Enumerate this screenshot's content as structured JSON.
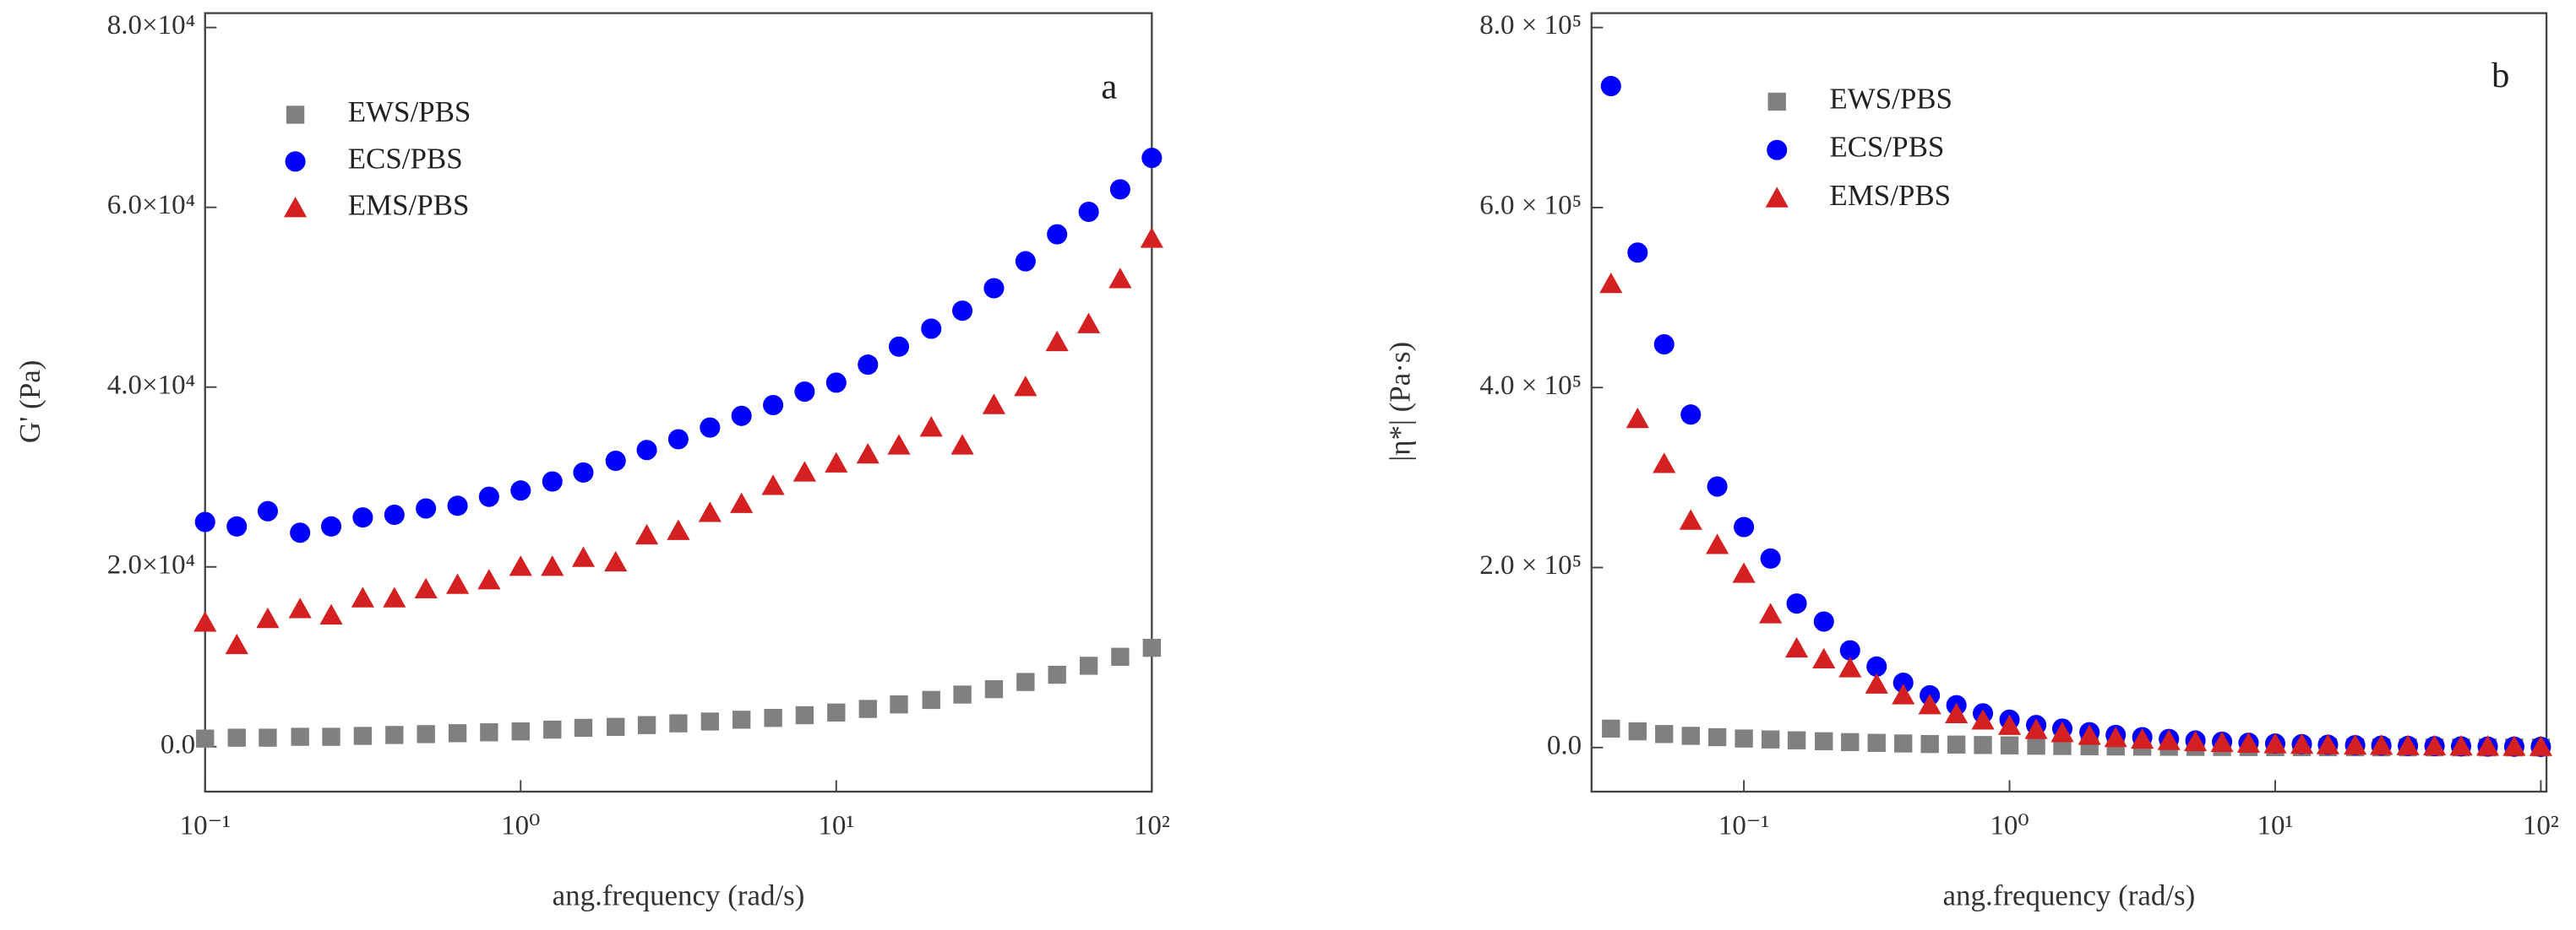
{
  "chart_data": [
    {
      "type": "scatter",
      "annotation": "a",
      "x_label": "ang.frequency (rad/s)",
      "y_label": "G' (Pa)",
      "xscale": "log",
      "legend": "upper left",
      "xlim": [
        0.1,
        100
      ],
      "ylim": [
        -5000,
        81600
      ],
      "xticks": [
        {
          "value": 0.1,
          "label": "10⁻¹"
        },
        {
          "value": 1,
          "label": "10⁰"
        },
        {
          "value": 10,
          "label": "10¹"
        },
        {
          "value": 100,
          "label": "10²"
        }
      ],
      "yticks": [
        {
          "value": 0,
          "label": "0.0"
        },
        {
          "value": 20000,
          "label": "2.0×10⁴"
        },
        {
          "value": 40000,
          "label": "4.0×10⁴"
        },
        {
          "value": 60000,
          "label": "6.0×10⁴"
        },
        {
          "value": 80000,
          "label": "8.0×10⁴"
        }
      ],
      "x": [
        0.1,
        0.126,
        0.158,
        0.2,
        0.251,
        0.316,
        0.398,
        0.501,
        0.631,
        0.794,
        1,
        1.26,
        1.58,
        2,
        2.51,
        3.16,
        3.98,
        5.01,
        6.31,
        7.94,
        10,
        12.6,
        15.8,
        20,
        25.1,
        31.6,
        39.8,
        50.1,
        63.1,
        79.4,
        100
      ],
      "series": [
        {
          "name": "EWS/PBS",
          "color": "#808080",
          "marker": "square",
          "values": [
            900,
            1000,
            1000,
            1100,
            1100,
            1200,
            1300,
            1400,
            1500,
            1600,
            1700,
            1900,
            2100,
            2200,
            2400,
            2600,
            2800,
            3000,
            3200,
            3500,
            3800,
            4200,
            4700,
            5200,
            5800,
            6400,
            7200,
            8000,
            9000,
            10000,
            11000
          ]
        },
        {
          "name": "ECS/PBS",
          "color": "#0000ff",
          "marker": "circle",
          "values": [
            25000,
            24500,
            26200,
            23800,
            24500,
            25500,
            25800,
            26500,
            26800,
            27800,
            28500,
            29500,
            30500,
            31800,
            33000,
            34200,
            35500,
            36800,
            38000,
            39500,
            40500,
            42500,
            44500,
            46500,
            48500,
            51000,
            54000,
            57000,
            59500,
            62000,
            65500
          ]
        },
        {
          "name": "EMS/PBS",
          "color": "#d42020",
          "marker": "triangle",
          "values": [
            13800,
            11300,
            14200,
            15300,
            14600,
            16500,
            16500,
            17500,
            18000,
            18500,
            20000,
            20000,
            21000,
            20500,
            23500,
            24000,
            26000,
            27000,
            29000,
            30500,
            31500,
            32500,
            33500,
            35500,
            33500,
            38000,
            40000,
            45000,
            47000,
            52000,
            56500
          ]
        }
      ]
    },
    {
      "type": "scatter",
      "annotation": "b",
      "x_label": "ang.frequency (rad/s)",
      "y_label": "|η*| (Pa·s)",
      "xscale": "log",
      "legend": "upper left",
      "xlim": [
        0.0267,
        105
      ],
      "ylim": [
        -49000,
        816000
      ],
      "xticks": [
        {
          "value": 0.1,
          "label": "10⁻¹"
        },
        {
          "value": 1,
          "label": "10⁰"
        },
        {
          "value": 10,
          "label": "10¹"
        },
        {
          "value": 100,
          "label": "10²"
        }
      ],
      "yticks": [
        {
          "value": 0,
          "label": "0.0"
        },
        {
          "value": 200000,
          "label": "2.0 × 10⁵"
        },
        {
          "value": 400000,
          "label": "4.0 × 10⁵"
        },
        {
          "value": 600000,
          "label": "6.0 × 10⁵"
        },
        {
          "value": 800000,
          "label": "8.0 × 10⁵"
        }
      ],
      "x": [
        0.0316,
        0.0398,
        0.0501,
        0.0631,
        0.0794,
        0.1,
        0.126,
        0.158,
        0.2,
        0.251,
        0.316,
        0.398,
        0.501,
        0.631,
        0.794,
        1,
        1.26,
        1.58,
        2,
        2.51,
        3.16,
        3.98,
        5.01,
        6.31,
        7.94,
        10,
        12.6,
        15.8,
        20,
        25.1,
        31.6,
        39.8,
        50.1,
        63.1,
        79.4,
        100
      ],
      "series": [
        {
          "name": "EWS/PBS",
          "color": "#808080",
          "marker": "square",
          "values": [
            21000,
            18000,
            15000,
            13000,
            11500,
            10000,
            9000,
            8000,
            7000,
            6000,
            5200,
            4500,
            3900,
            3300,
            2800,
            2400,
            2000,
            1700,
            1400,
            1200,
            1000,
            850,
            720,
            620,
            530,
            450,
            390,
            340,
            290,
            250,
            215,
            185,
            160,
            140,
            120,
            110
          ]
        },
        {
          "name": "ECS/PBS",
          "color": "#0000ff",
          "marker": "circle",
          "values": [
            735000,
            550000,
            448000,
            370000,
            290000,
            245000,
            210000,
            160000,
            140000,
            108000,
            90000,
            72000,
            58000,
            47000,
            38000,
            31000,
            25000,
            21000,
            17000,
            14000,
            11500,
            9500,
            7800,
            6500,
            5300,
            4400,
            3700,
            3100,
            2600,
            2150,
            1800,
            1550,
            1300,
            1100,
            950,
            800
          ]
        },
        {
          "name": "EMS/PBS",
          "color": "#d42020",
          "marker": "triangle",
          "values": [
            515000,
            365000,
            315000,
            252000,
            225000,
            193000,
            148000,
            110000,
            98000,
            88000,
            70000,
            58000,
            47000,
            37000,
            30000,
            24000,
            19500,
            16000,
            13000,
            10500,
            8800,
            7200,
            6000,
            5000,
            4300,
            3600,
            3000,
            2500,
            2100,
            1800,
            1500,
            1300,
            1100,
            950,
            800,
            700
          ]
        }
      ]
    }
  ]
}
